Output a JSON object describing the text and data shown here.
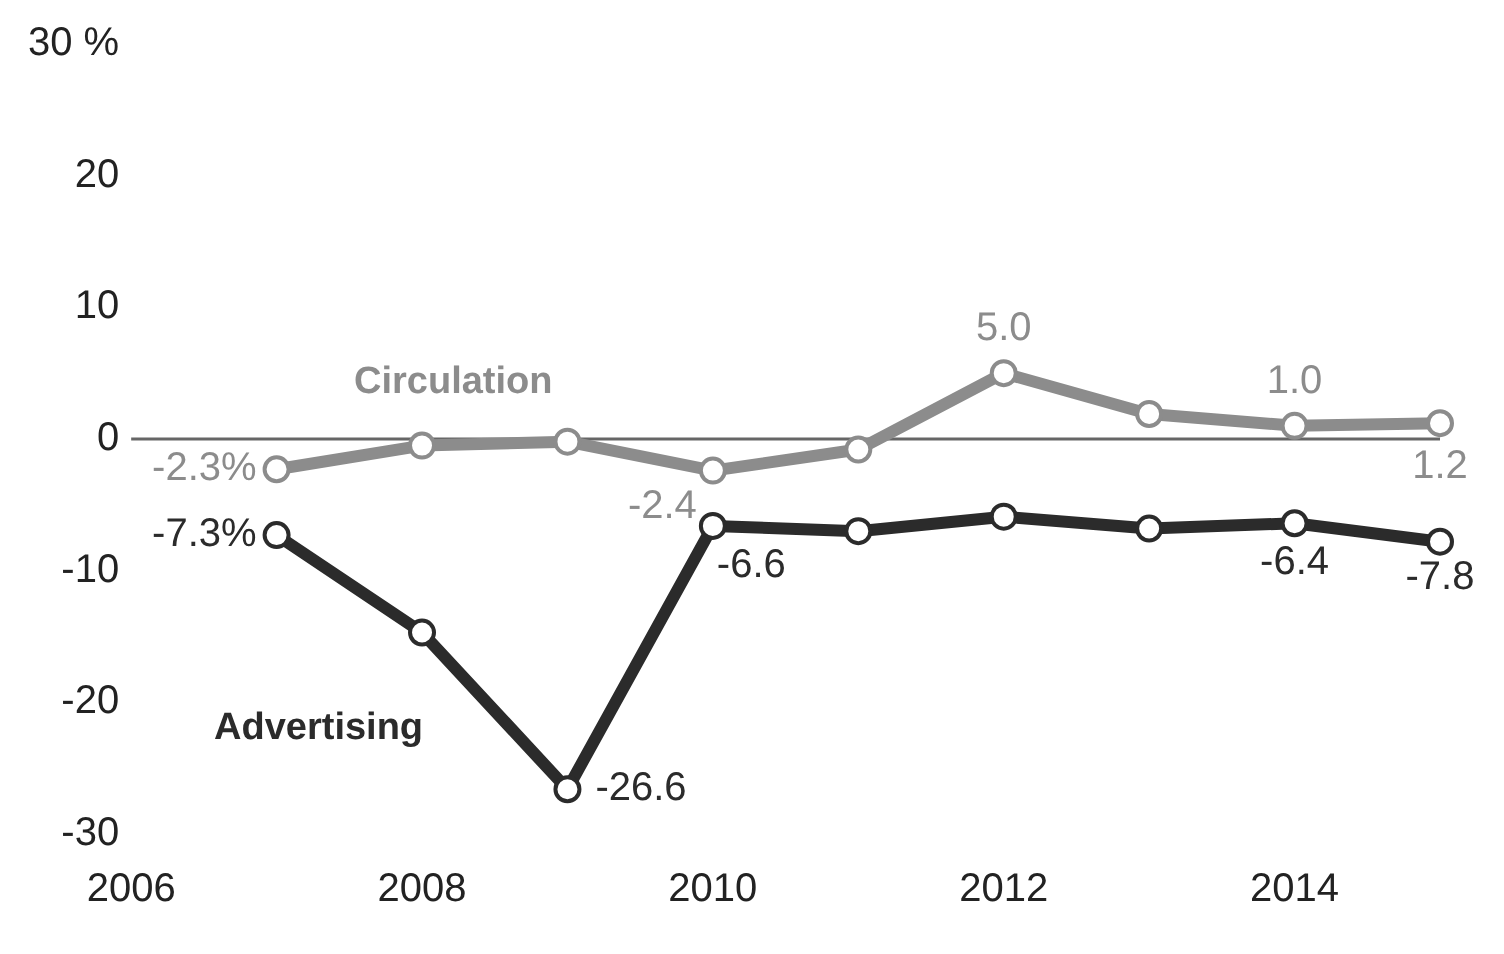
{
  "chart_data": {
    "type": "line",
    "x": [
      2007,
      2008,
      2009,
      2010,
      2011,
      2012,
      2013,
      2014,
      2015
    ],
    "series": [
      {
        "name": "Circulation",
        "color": "#8c8c8c",
        "values": [
          -2.3,
          -0.5,
          -0.2,
          -2.4,
          -0.8,
          5.0,
          1.9,
          1.0,
          1.2
        ],
        "value_labels": [
          "-2.3%",
          null,
          null,
          "-2.4",
          null,
          "5.0",
          null,
          "1.0",
          "1.2"
        ]
      },
      {
        "name": "Advertising",
        "color": "#2b2b2b",
        "values": [
          -7.3,
          -14.7,
          -26.6,
          -6.6,
          -7.0,
          -5.9,
          -6.8,
          -6.4,
          -7.8
        ],
        "value_labels": [
          "-7.3%",
          null,
          "-26.6",
          "-6.6",
          null,
          null,
          null,
          "-6.4",
          "-7.8"
        ]
      }
    ],
    "xlim": [
      2006,
      2015
    ],
    "xticks": [
      2006,
      2008,
      2010,
      2012,
      2014
    ],
    "ylim": [
      -30,
      30
    ],
    "yticks": [
      -30,
      -20,
      -10,
      0,
      10,
      20,
      {
        "value": 30,
        "label": "30 %"
      }
    ],
    "ref_lines": [
      {
        "axis": "y",
        "value": 0
      }
    ],
    "grid": false,
    "legend": false,
    "marker": "circle",
    "line_style": "solid"
  }
}
